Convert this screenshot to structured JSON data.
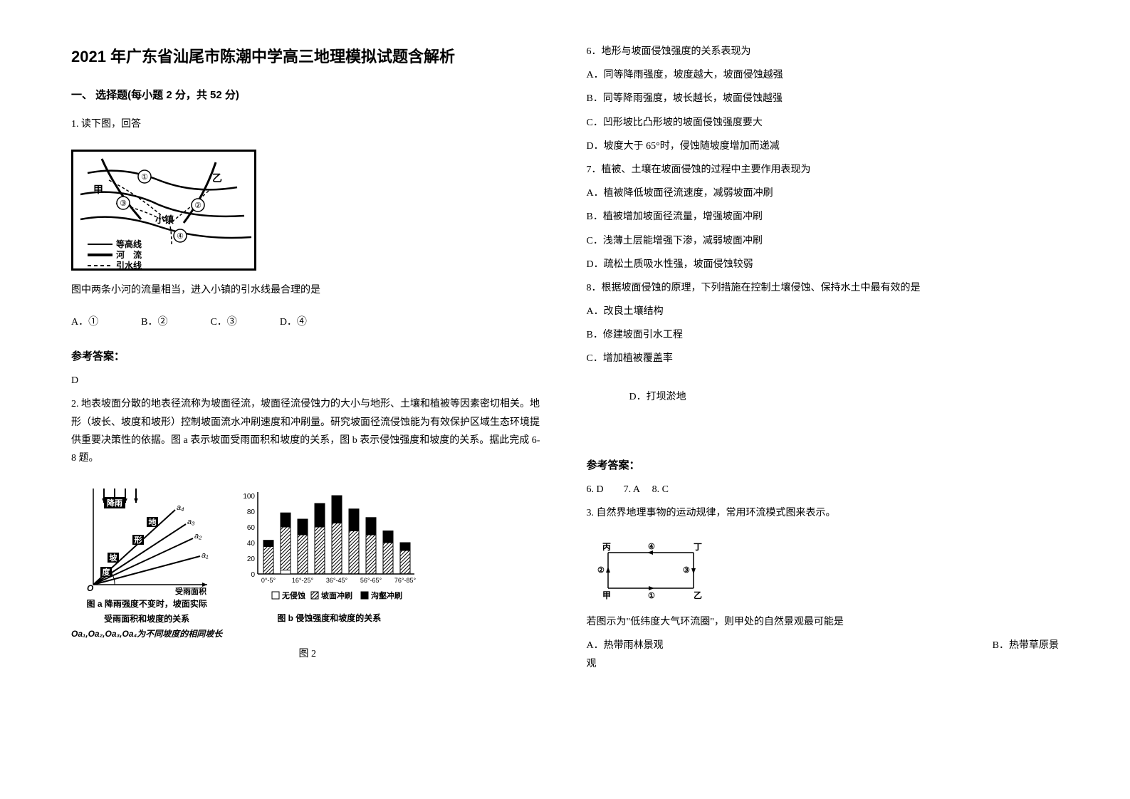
{
  "title": "2021 年广东省汕尾市陈潮中学高三地理模拟试题含解析",
  "section1_header": "一、 选择题(每小题 2 分，共 52 分)",
  "q1": {
    "stem": "1. 读下图，回答",
    "after_fig": "图中两条小河的流量相当，进入小镇的引水线最合理的是",
    "optA": "A．①",
    "optB": "B．②",
    "optC": "C．③",
    "optD": "D．④",
    "fig_labels": {
      "jia": "甲",
      "yi": "乙",
      "town": "小镇",
      "n1": "①",
      "n2": "②",
      "n3": "③",
      "n4": "④",
      "legend1": "等高线",
      "legend2": "河　流",
      "legend3": "引水线"
    }
  },
  "answer_label": "参考答案：",
  "q1_answer": "D",
  "q2": {
    "intro": "2. 地表坡面分散的地表径流称为坡面径流，坡面径流侵蚀力的大小与地形、土壤和植被等因素密切相关。地形（坡长、坡度和坡形）控制坡面流水冲刷速度和冲刷量。研究坡面径流侵蚀能为有效保护区域生态环境提供重要决策性的依据。图 a 表示坡面受雨面积和坡度的关系，图 b 表示侵蚀强度和坡度的关系。据此完成 6-8 题。",
    "figA": {
      "rain": "降雨",
      "di": "地",
      "xing": "形",
      "po": "坡",
      "du": "度",
      "a1": "a₁",
      "a2": "a₂",
      "a3": "a₃",
      "a4": "a₄",
      "O": "O",
      "xlabel": "受雨面积",
      "caption1": "图 a 降雨强度不变时，坡面实际",
      "caption2": "受雨面积和坡度的关系",
      "caption3": "Oa₁,Oa₂,Oa₃,Oa₄为不同坡度的相同坡长"
    },
    "figB": {
      "ylabels": [
        "100",
        "80",
        "60",
        "40",
        "20",
        "0"
      ],
      "xlabels": [
        "0°-5°",
        "16°-25°",
        "36°-45°",
        "56°-65°",
        "76°-85°"
      ],
      "legend1": "无侵蚀",
      "legend2": "坡面冲刷",
      "legend3": "沟壑冲刷",
      "caption": "图 b 侵蚀强度和坡度的关系",
      "bars": [
        {
          "a": 0,
          "b": 35,
          "c": 8
        },
        {
          "a": 5,
          "b": 55,
          "c": 18
        },
        {
          "a": 0,
          "b": 50,
          "c": 20
        },
        {
          "a": 0,
          "b": 60,
          "c": 30
        },
        {
          "a": 0,
          "b": 65,
          "c": 35
        },
        {
          "a": 0,
          "b": 55,
          "c": 28
        },
        {
          "a": 0,
          "b": 50,
          "c": 22
        },
        {
          "a": 0,
          "b": 40,
          "c": 15
        },
        {
          "a": 0,
          "b": 30,
          "c": 10
        }
      ],
      "colors": {
        "a": "#ffffff",
        "b": "url(#hatch)",
        "c": "#000000",
        "border": "#000000"
      }
    },
    "fig2_caption": "图 2"
  },
  "q6": {
    "stem": "6．地形与坡面侵蚀强度的关系表现为",
    "A": "A．同等降雨强度，坡度越大，坡面侵蚀越强",
    "B": "B．同等降雨强度，坡长越长，坡面侵蚀越强",
    "C": "C．凹形坡比凸形坡的坡面侵蚀强度要大",
    "D": "D．坡度大于 65°时，侵蚀随坡度增加而递减"
  },
  "q7": {
    "stem": "7．植被、土壤在坡面侵蚀的过程中主要作用表现为",
    "A": "A．植被降低坡面径流速度，减弱坡面冲刷",
    "B": "B．植被增加坡面径流量，增强坡面冲刷",
    "C": "C．浅薄土层能增强下渗，减弱坡面冲刷",
    "D": "D．疏松土质吸水性强，坡面侵蚀较弱"
  },
  "q8": {
    "stem": "8．根据坡面侵蚀的原理，下列措施在控制土壤侵蚀、保持水土中最有效的是",
    "A": "A．改良土壤结构",
    "B": "B．修建坡面引水工程",
    "C": "C．增加植被覆盖率",
    "D": "D．打坝淤地"
  },
  "ans_678": "6. D　　7. A　 8. C",
  "q3": {
    "stem": "3. 自然界地理事物的运动规律，常用环流模式图来表示。",
    "fig": {
      "bing": "丙",
      "ding": "丁",
      "jia": "甲",
      "yi": "乙",
      "n1": "①",
      "n2": "②",
      "n3": "③",
      "n4": "④"
    },
    "after": "若图示为\"低纬度大气环流圈\"，则甲处的自然景观最可能是",
    "optA": "A．热带雨林景观",
    "optB": "B．热带草原景",
    "optB2": "观"
  }
}
